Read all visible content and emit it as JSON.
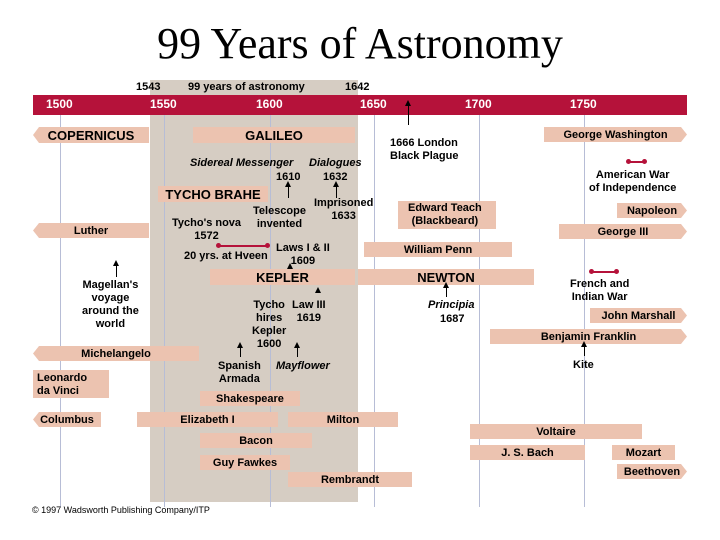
{
  "title": "99 Years of Astronomy",
  "header_labels": {
    "start_year": "1543",
    "span": "99 years of astronomy",
    "end_year": "1642"
  },
  "axis_years": [
    "1500",
    "1550",
    "1600",
    "1650",
    "1700",
    "1750"
  ],
  "bars": {
    "copernicus": "COPERNICUS",
    "galileo": "GALILEO",
    "tycho_brahe": "TYCHO BRAHE",
    "kepler": "KEPLER",
    "newton": "NEWTON",
    "luther": "Luther",
    "michelangelo": "Michelangelo",
    "columbus": "Columbus",
    "elizabeth": "Elizabeth I",
    "milton": "Milton",
    "shakespeare": "Shakespeare",
    "bacon": "Bacon",
    "guy_fawkes": "Guy Fawkes",
    "rembrandt": "Rembrandt",
    "william_penn": "William Penn",
    "george_washington": "George Washington",
    "napoleon": "Napoleon",
    "george_iii": "George III",
    "john_marshall": "John Marshall",
    "benjamin_franklin": "Benjamin Franklin",
    "voltaire": "Voltaire",
    "bach": "J. S. Bach",
    "mozart": "Mozart",
    "beethoven": "Beethoven"
  },
  "labels": {
    "sidereal": "Sidereal Messenger",
    "sidereal_year": "1610",
    "dialogues": "Dialogues",
    "dialogues_year": "1632",
    "telescope": "Telescope\ninvented",
    "imprisoned": "Imprisoned\n1633",
    "tycho_nova": "Tycho's nova\n1572",
    "hveen": "20 yrs. at Hveen",
    "laws": "Laws I & II\n1609",
    "tycho_hires": "Tycho\nhires\nKepler\n1600",
    "law3": "Law III\n1619",
    "magellan": "Magellan's\nvoyage\naround the\nworld",
    "spanish_armada": "Spanish\nArmada",
    "mayflower": "Mayflower",
    "leonardo": "Leonardo\nda Vinci",
    "plague": "1666 London\nBlack Plague",
    "blackbeard": "Edward Teach\n(Blackbeard)",
    "principia": "Principia",
    "principia_year": "1687",
    "american_war": "American War\nof Independence",
    "french_indian": "French and\nIndian War",
    "kite": "Kite"
  },
  "copyright": "© 1997 Wadsworth Publishing Company/ITP",
  "colors": {
    "axis": "#b5123a",
    "bar": "#ecc3b0",
    "shade": "#d6cdc3",
    "gridline": "#b7bdd6"
  }
}
